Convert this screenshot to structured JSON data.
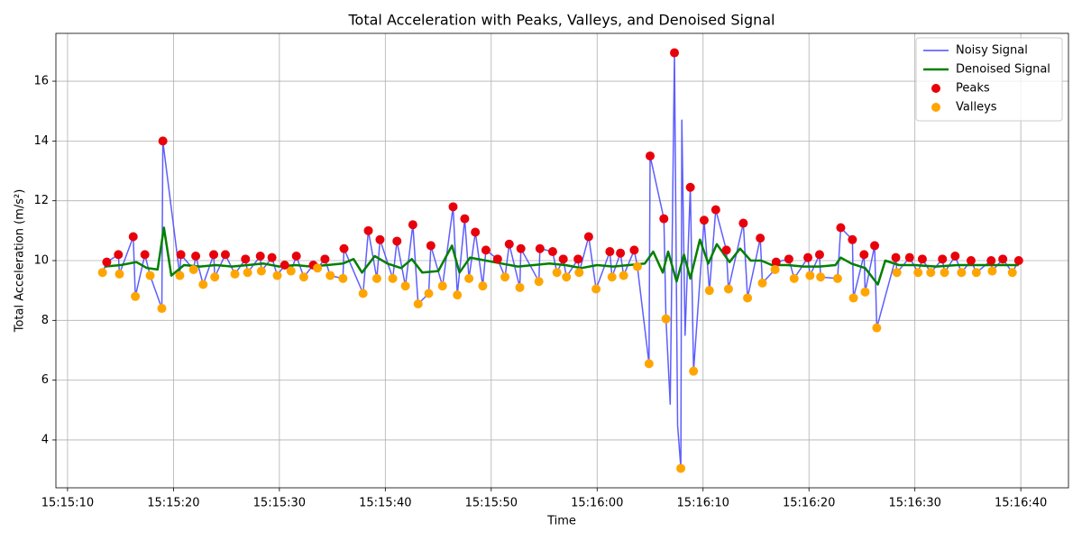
{
  "chart_data": {
    "type": "line",
    "title": "Total Acceleration with Peaks, Valleys, and Denoised Signal",
    "x_label": "Time",
    "y_label": "Total Acceleration (m/s²)",
    "xlim": [
      "15:15:08.9",
      "15:16:44.5"
    ],
    "xticks": [
      "15:15:10",
      "15:15:20",
      "15:15:30",
      "15:15:40",
      "15:15:50",
      "15:16:00",
      "15:16:10",
      "15:16:20",
      "15:16:30",
      "15:16:40"
    ],
    "ylim": [
      2.4,
      17.6
    ],
    "yticks": [
      4,
      6,
      8,
      10,
      12,
      14,
      16
    ],
    "grid": true,
    "legend": "upper right",
    "series": [
      {
        "name": "Noisy Signal",
        "type": "line",
        "color": "#4d4dff",
        "x": [
          "15:15:13.3",
          "15:15:13.7",
          "15:15:14.8",
          "15:15:14.9",
          "15:15:16.2",
          "15:15:16.4",
          "15:15:17.3",
          "15:15:17.8",
          "15:15:18.9",
          "15:15:19.0",
          "15:15:20.6",
          "15:15:20.7",
          "15:15:21.9",
          "15:15:22.1",
          "15:15:22.8",
          "15:15:23.8",
          "15:15:23.9",
          "15:15:24.9",
          "15:15:25.8",
          "15:15:26.8",
          "15:15:27.0",
          "15:15:28.2",
          "15:15:28.3",
          "15:15:29.3",
          "15:15:29.8",
          "15:15:30.5",
          "15:15:31.1",
          "15:15:31.6",
          "15:15:32.3",
          "15:15:33.2",
          "15:15:33.6",
          "15:15:34.3",
          "15:15:34.8",
          "15:15:36.0",
          "15:15:36.1",
          "15:15:37.9",
          "15:15:38.4",
          "15:15:39.2",
          "15:15:39.5",
          "15:15:40.7",
          "15:15:41.1",
          "15:15:41.9",
          "15:15:42.6",
          "15:15:43.1",
          "15:15:44.1",
          "15:15:44.3",
          "15:15:45.4",
          "15:15:46.4",
          "15:15:46.8",
          "15:15:47.5",
          "15:15:47.9",
          "15:15:48.5",
          "15:15:49.2",
          "15:15:49.5",
          "15:15:50.6",
          "15:15:51.3",
          "15:15:51.7",
          "15:15:52.7",
          "15:15:52.8",
          "15:15:54.5",
          "15:15:54.6",
          "15:15:55.8",
          "15:15:56.2",
          "15:15:56.8",
          "15:15:57.1",
          "15:15:58.2",
          "15:15:58.3",
          "15:15:59.2",
          "15:15:59.9",
          "15:16:01.2",
          "15:16:01.4",
          "15:16:02.2",
          "15:16:02.5",
          "15:16:03.5",
          "15:16:03.8",
          "15:16:04.9",
          "15:16:05.0",
          "15:16:06.3",
          "15:16:06.5",
          "15:16:06.9",
          "15:16:07.3",
          "15:16:07.6",
          "15:16:07.9",
          "15:16:08.0",
          "15:16:08.3",
          "15:16:08.8",
          "15:16:09.1",
          "15:16:10.1",
          "15:16:10.6",
          "15:16:11.2",
          "15:16:12.2",
          "15:16:12.4",
          "15:16:13.8",
          "15:16:14.2",
          "15:16:15.4",
          "15:16:15.6",
          "15:16:16.8",
          "15:16:16.9",
          "15:16:18.1",
          "15:16:18.6",
          "15:16:19.9",
          "15:16:20.1",
          "15:16:21.0",
          "15:16:21.1",
          "15:16:22.7",
          "15:16:23.0",
          "15:16:24.1",
          "15:16:24.2",
          "15:16:25.2",
          "15:16:25.3",
          "15:16:26.2",
          "15:16:26.4",
          "15:16:28.2",
          "15:16:28.3",
          "15:16:29.5",
          "15:16:30.3",
          "15:16:30.7",
          "15:16:31.5",
          "15:16:32.6",
          "15:16:32.8",
          "15:16:33.8",
          "15:16:34.4",
          "15:16:35.3",
          "15:16:35.8",
          "15:16:37.2",
          "15:16:37.3",
          "15:16:38.3",
          "15:16:39.2",
          "15:16:39.8"
        ],
        "values": [
          9.6,
          9.95,
          10.2,
          9.55,
          10.8,
          8.8,
          10.2,
          9.5,
          8.4,
          14.0,
          9.5,
          10.2,
          9.7,
          10.15,
          9.2,
          10.2,
          9.45,
          10.2,
          9.55,
          10.05,
          9.6,
          10.15,
          9.65,
          10.1,
          9.5,
          9.85,
          9.65,
          10.15,
          9.45,
          9.85,
          9.75,
          10.05,
          9.5,
          9.4,
          10.4,
          8.9,
          11.0,
          9.4,
          10.7,
          9.4,
          10.65,
          9.15,
          11.2,
          8.55,
          8.9,
          10.5,
          9.15,
          11.8,
          8.85,
          11.4,
          9.4,
          10.95,
          9.15,
          10.35,
          10.05,
          9.45,
          10.55,
          9.1,
          10.4,
          9.3,
          10.4,
          10.3,
          9.6,
          10.05,
          9.45,
          10.05,
          9.6,
          10.8,
          9.05,
          10.3,
          9.45,
          10.25,
          9.5,
          10.35,
          9.8,
          6.55,
          13.5,
          11.4,
          8.05,
          5.2,
          16.95,
          4.5,
          3.05,
          14.7,
          7.5,
          12.45,
          6.3,
          11.35,
          9.0,
          11.7,
          10.35,
          9.05,
          11.25,
          8.75,
          10.75,
          9.25,
          9.7,
          9.95,
          10.05,
          9.4,
          10.1,
          9.5,
          10.2,
          9.45,
          9.4,
          11.1,
          10.7,
          8.75,
          10.2,
          8.95,
          10.5,
          7.75,
          10.1,
          9.6,
          10.1,
          9.6,
          10.05,
          9.6,
          10.05,
          9.6,
          10.15,
          9.6,
          10.0,
          9.6,
          10.0,
          9.65,
          10.05,
          9.6,
          10.0
        ]
      },
      {
        "name": "Denoised Signal",
        "type": "line",
        "color": "#008000",
        "x": [
          "15:15:13.5",
          "15:15:15.0",
          "15:15:16.5",
          "15:15:17.5",
          "15:15:18.5",
          "15:15:19.1",
          "15:15:19.8",
          "15:15:21.0",
          "15:15:22.5",
          "15:15:24.0",
          "15:15:25.5",
          "15:15:27.0",
          "15:15:28.5",
          "15:15:30.0",
          "15:15:31.5",
          "15:15:33.0",
          "15:15:34.5",
          "15:15:36.0",
          "15:15:37.0",
          "15:15:37.8",
          "15:15:39.0",
          "15:15:40.2",
          "15:15:41.5",
          "15:15:42.5",
          "15:15:43.5",
          "15:15:45.0",
          "15:15:46.3",
          "15:15:47.0",
          "15:15:48.0",
          "15:15:49.5",
          "15:15:51.0",
          "15:15:52.5",
          "15:15:54.0",
          "15:15:55.5",
          "15:15:57.0",
          "15:15:58.5",
          "15:16:00.0",
          "15:16:01.5",
          "15:16:03.0",
          "15:16:04.5",
          "15:16:05.3",
          "15:16:06.2",
          "15:16:06.7",
          "15:16:07.5",
          "15:16:08.2",
          "15:16:08.8",
          "15:16:09.7",
          "15:16:10.5",
          "15:16:11.3",
          "15:16:12.5",
          "15:16:13.5",
          "15:16:14.5",
          "15:16:15.5",
          "15:16:16.5",
          "15:16:18.0",
          "15:16:19.5",
          "15:16:21.0",
          "15:16:22.5",
          "15:16:23.0",
          "15:16:24.0",
          "15:16:25.3",
          "15:16:26.5",
          "15:16:27.2",
          "15:16:28.5",
          "15:16:30.0",
          "15:16:32.0",
          "15:16:34.0",
          "15:16:36.0",
          "15:16:38.0",
          "15:16:39.8"
        ],
        "values": [
          9.8,
          9.85,
          9.95,
          9.75,
          9.7,
          11.1,
          9.5,
          9.85,
          9.8,
          9.85,
          9.8,
          9.85,
          9.9,
          9.8,
          9.85,
          9.8,
          9.85,
          9.9,
          10.05,
          9.6,
          10.15,
          9.9,
          9.75,
          10.05,
          9.6,
          9.65,
          10.5,
          9.6,
          10.1,
          10.0,
          9.9,
          9.8,
          9.85,
          9.9,
          9.85,
          9.75,
          9.85,
          9.8,
          9.85,
          9.9,
          10.3,
          9.6,
          10.3,
          9.3,
          10.2,
          9.4,
          10.7,
          9.9,
          10.55,
          9.95,
          10.4,
          10.0,
          10.0,
          9.85,
          9.85,
          9.8,
          9.8,
          9.85,
          10.1,
          9.9,
          9.75,
          9.2,
          10.0,
          9.85,
          9.85,
          9.8,
          9.85,
          9.85,
          9.85,
          9.85
        ]
      },
      {
        "name": "Peaks",
        "type": "scatter",
        "color": "#e8000b",
        "x": [
          "15:15:13.7",
          "15:15:14.8",
          "15:15:16.2",
          "15:15:17.3",
          "15:15:19.0",
          "15:15:20.7",
          "15:15:22.1",
          "15:15:23.8",
          "15:15:24.9",
          "15:15:26.8",
          "15:15:28.2",
          "15:15:29.3",
          "15:15:30.5",
          "15:15:31.6",
          "15:15:33.2",
          "15:15:34.3",
          "15:15:36.1",
          "15:15:38.4",
          "15:15:39.5",
          "15:15:41.1",
          "15:15:42.6",
          "15:15:44.3",
          "15:15:46.4",
          "15:15:47.5",
          "15:15:48.5",
          "15:15:49.5",
          "15:15:50.6",
          "15:15:51.7",
          "15:15:52.8",
          "15:15:54.6",
          "15:15:55.8",
          "15:15:56.8",
          "15:15:58.2",
          "15:15:59.2",
          "15:16:01.2",
          "15:16:02.2",
          "15:16:03.5",
          "15:16:05.0",
          "15:16:06.3",
          "15:16:07.3",
          "15:16:08.8",
          "15:16:10.1",
          "15:16:11.2",
          "15:16:12.2",
          "15:16:13.8",
          "15:16:15.4",
          "15:16:16.9",
          "15:16:18.1",
          "15:16:19.9",
          "15:16:21.0",
          "15:16:23.0",
          "15:16:24.1",
          "15:16:25.2",
          "15:16:26.2",
          "15:16:28.2",
          "15:16:29.5",
          "15:16:30.7",
          "15:16:32.6",
          "15:16:33.8",
          "15:16:35.3",
          "15:16:37.2",
          "15:16:38.3",
          "15:16:39.8"
        ],
        "values": [
          9.95,
          10.2,
          10.8,
          10.2,
          14.0,
          10.2,
          10.15,
          10.2,
          10.2,
          10.05,
          10.15,
          10.1,
          9.85,
          10.15,
          9.85,
          10.05,
          10.4,
          11.0,
          10.7,
          10.65,
          11.2,
          10.5,
          11.8,
          11.4,
          10.95,
          10.35,
          10.05,
          10.55,
          10.4,
          10.4,
          10.3,
          10.05,
          10.05,
          10.8,
          10.3,
          10.25,
          10.35,
          13.5,
          11.4,
          16.95,
          12.45,
          11.35,
          11.7,
          10.35,
          11.25,
          10.75,
          9.95,
          10.05,
          10.1,
          10.2,
          11.1,
          10.7,
          10.2,
          10.5,
          10.1,
          10.1,
          10.05,
          10.05,
          10.15,
          10.0,
          10.0,
          10.05,
          10.0
        ]
      },
      {
        "name": "Valleys",
        "type": "scatter",
        "color": "#ffa500",
        "x": [
          "15:15:13.3",
          "15:15:14.9",
          "15:15:16.4",
          "15:15:17.8",
          "15:15:18.9",
          "15:15:20.6",
          "15:15:21.9",
          "15:15:22.8",
          "15:15:23.9",
          "15:15:25.8",
          "15:15:27.0",
          "15:15:28.3",
          "15:15:29.8",
          "15:15:31.1",
          "15:15:32.3",
          "15:15:33.6",
          "15:15:34.8",
          "15:15:36.0",
          "15:15:37.9",
          "15:15:39.2",
          "15:15:40.7",
          "15:15:41.9",
          "15:15:43.1",
          "15:15:44.1",
          "15:15:45.4",
          "15:15:46.8",
          "15:15:47.9",
          "15:15:49.2",
          "15:15:51.3",
          "15:15:52.7",
          "15:15:54.5",
          "15:15:56.2",
          "15:15:57.1",
          "15:15:58.3",
          "15:15:59.9",
          "15:16:01.4",
          "15:16:02.5",
          "15:16:03.8",
          "15:16:04.9",
          "15:16:06.5",
          "15:16:07.9",
          "15:16:09.1",
          "15:16:10.6",
          "15:16:12.4",
          "15:16:14.2",
          "15:16:15.6",
          "15:16:16.8",
          "15:16:18.6",
          "15:16:20.1",
          "15:16:21.1",
          "15:16:22.7",
          "15:16:24.2",
          "15:16:25.3",
          "15:16:26.4",
          "15:16:28.3",
          "15:16:30.3",
          "15:16:31.5",
          "15:16:32.8",
          "15:16:34.4",
          "15:16:35.8",
          "15:16:37.3",
          "15:16:39.2"
        ],
        "values": [
          9.6,
          9.55,
          8.8,
          9.5,
          8.4,
          9.5,
          9.7,
          9.2,
          9.45,
          9.55,
          9.6,
          9.65,
          9.5,
          9.65,
          9.45,
          9.75,
          9.5,
          9.4,
          8.9,
          9.4,
          9.4,
          9.15,
          8.55,
          8.9,
          9.15,
          8.85,
          9.4,
          9.15,
          9.45,
          9.1,
          9.3,
          9.6,
          9.45,
          9.6,
          9.05,
          9.45,
          9.5,
          9.8,
          6.55,
          8.05,
          3.05,
          6.3,
          9.0,
          9.05,
          8.75,
          9.25,
          9.7,
          9.4,
          9.5,
          9.45,
          9.4,
          8.75,
          8.95,
          7.75,
          9.6,
          9.6,
          9.6,
          9.6,
          9.6,
          9.6,
          9.65,
          9.6
        ]
      }
    ]
  }
}
